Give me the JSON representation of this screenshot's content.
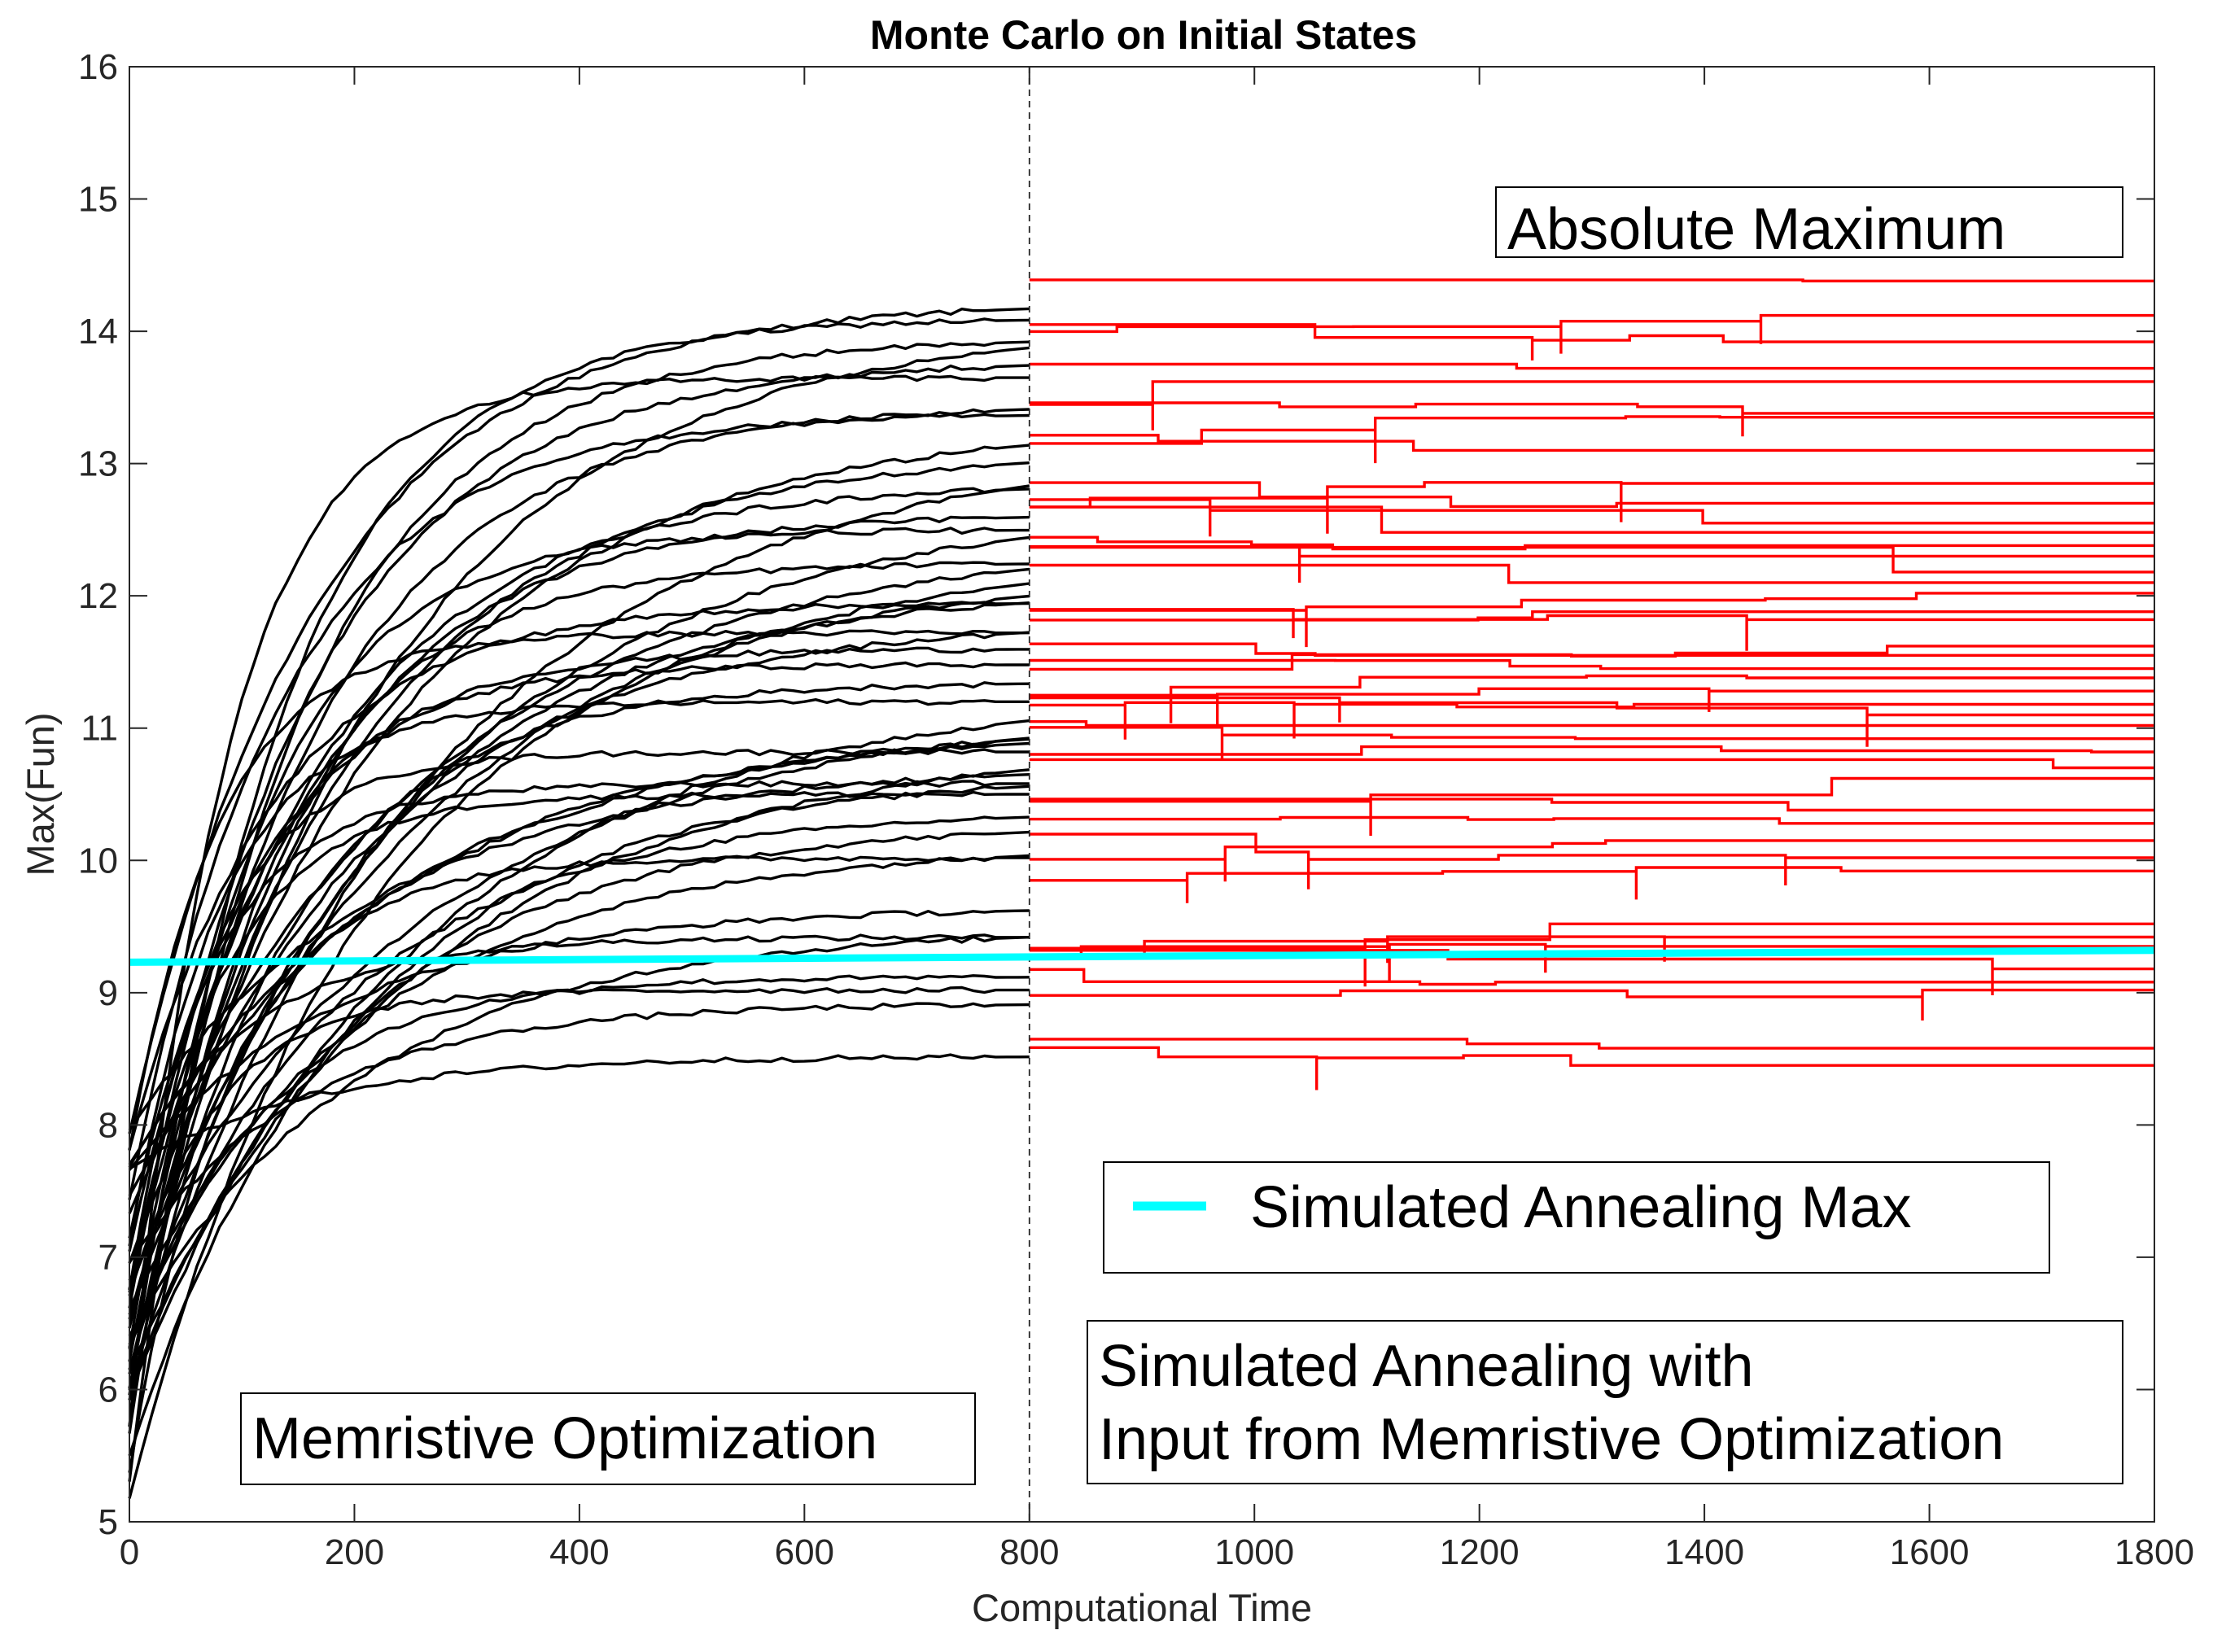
{
  "chart_data": {
    "type": "line",
    "title": "Monte Carlo on Initial States",
    "xlabel": "Computational Time",
    "ylabel": "Max(Fun)",
    "xlim": [
      0,
      1800
    ],
    "ylim": [
      5,
      16
    ],
    "xticks": [
      0,
      200,
      400,
      600,
      800,
      1000,
      1200,
      1400,
      1600,
      1800
    ],
    "yticks": [
      5,
      6,
      7,
      8,
      9,
      10,
      11,
      12,
      13,
      14,
      15,
      16
    ],
    "phase_boundary_x": 800,
    "memristive_series": {
      "name": "Memristive Optimization",
      "color": "#000000",
      "start_range": [
        5.15,
        8.1
      ],
      "final_values": [
        14.22,
        14.1,
        14.05,
        13.95,
        13.78,
        13.65,
        13.45,
        13.38,
        13.3,
        13.15,
        13.1,
        12.85,
        12.7,
        12.62,
        12.5,
        12.42,
        12.35,
        12.25,
        12.15,
        12.05,
        11.95,
        11.82,
        11.72,
        11.6,
        11.48,
        11.35,
        11.28,
        11.2,
        11.12,
        11.05,
        10.98,
        10.9,
        10.82,
        10.72,
        10.65,
        10.58,
        10.5,
        10.38,
        10.28,
        10.12,
        10.02,
        9.65,
        9.48,
        9.42,
        9.12,
        9.02,
        8.92,
        8.52
      ]
    },
    "annealing_series": {
      "name": "Simulated Annealing with Input from Memristive Optimization",
      "color": "#ff0000",
      "x_range": [
        800,
        1800
      ],
      "final_values": [
        14.38,
        14.12,
        13.92,
        13.72,
        13.62,
        13.38,
        13.35,
        13.1,
        12.85,
        12.7,
        12.55,
        12.48,
        12.38,
        12.3,
        12.18,
        12.1,
        12.02,
        11.88,
        11.82,
        11.62,
        11.55,
        11.45,
        11.38,
        11.28,
        11.18,
        11.1,
        11.02,
        10.92,
        10.82,
        10.7,
        10.62,
        10.38,
        10.28,
        10.15,
        10.02,
        9.92,
        9.52,
        9.42,
        9.35,
        9.18,
        9.08,
        9.02,
        8.58,
        8.45
      ]
    },
    "reference_line": {
      "name": "Simulated Annealing Max",
      "color": "#00ffff",
      "x": [
        0,
        1800
      ],
      "y": [
        9.23,
        9.32
      ]
    },
    "annotations": {
      "absolute_maximum": "Absolute Maximum",
      "memristive": "Memristive Optimization",
      "annealing_line1": "Simulated Annealing with",
      "annealing_line2": "Input from Memristive Optimization"
    },
    "legend": {
      "label": "Simulated Annealing Max",
      "placement": "center-right"
    }
  }
}
